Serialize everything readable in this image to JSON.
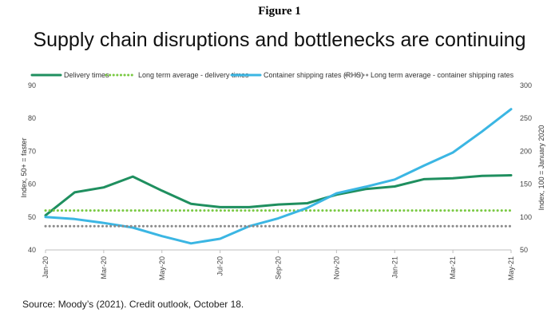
{
  "figure_label": "Figure 1",
  "source": "Source: Moody’s (2021). Credit outlook, October 18.",
  "colors": {
    "delivery": "#1f8f5f",
    "delivery_avg": "#7ac943",
    "shipping": "#3bb6e3",
    "shipping_avg": "#8a8a8a"
  },
  "chart_data": {
    "type": "line",
    "title": "Supply chain disruptions and bottlenecks are continuing",
    "categories": [
      "Jan-20",
      "Feb-20",
      "Mar-20",
      "Apr-20",
      "May-20",
      "Jun-20",
      "Jul-20",
      "Aug-20",
      "Sep-20",
      "Oct-20",
      "Nov-20",
      "Dec-20",
      "Jan-21",
      "Feb-21",
      "Mar-21",
      "Apr-21",
      "May-21"
    ],
    "x_tick_labels": [
      "Jan-20",
      "Mar-20",
      "May-20",
      "Jul-20",
      "Sep-20",
      "Nov-20",
      "Jan-21",
      "Mar-21",
      "May-21"
    ],
    "y_left": {
      "label": "Index, 50+ = faster",
      "ylim": [
        40,
        90
      ],
      "ticks": [
        40,
        50,
        60,
        70,
        80,
        90
      ]
    },
    "y_right": {
      "label": "Index, 100 = January 2020",
      "ylim": [
        50,
        300
      ],
      "ticks": [
        50,
        100,
        150,
        200,
        250,
        300
      ]
    },
    "series": [
      {
        "name": "Delivery times",
        "axis": "left",
        "style": "solid",
        "values": [
          50.5,
          57.5,
          59,
          62.3,
          58,
          54,
          53,
          53,
          53.8,
          54.2,
          56.8,
          58.5,
          59.3,
          61.5,
          61.8,
          62.5,
          62.7
        ]
      },
      {
        "name": "Long term average - delivery times",
        "axis": "left",
        "style": "dotted",
        "values": [
          52,
          52,
          52,
          52,
          52,
          52,
          52,
          52,
          52,
          52,
          52,
          52,
          52,
          52,
          52,
          52,
          52
        ]
      },
      {
        "name": "Container shipping rates (RHS)",
        "axis": "right",
        "style": "solid",
        "values": [
          100,
          97,
          91,
          84,
          71,
          60,
          67,
          86,
          98,
          114,
          136,
          146,
          157,
          178,
          198,
          230,
          264
        ]
      },
      {
        "name": "Long term average - container shipping rates",
        "axis": "right",
        "style": "dotted",
        "values": [
          86,
          86,
          86,
          86,
          86,
          86,
          86,
          86,
          86,
          86,
          86,
          86,
          86,
          86,
          86,
          86,
          86
        ]
      }
    ]
  }
}
